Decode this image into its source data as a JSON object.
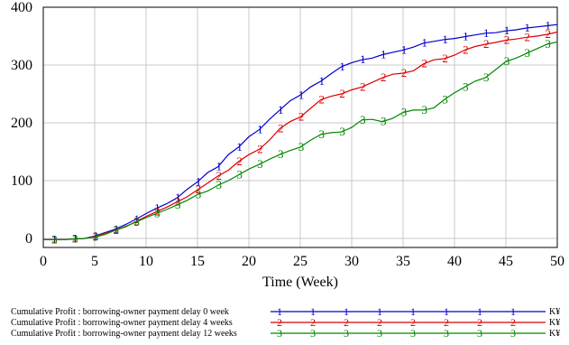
{
  "chart_data": {
    "type": "line",
    "xlabel": "Time (Week)",
    "ylabel": "",
    "xlim": [
      0,
      50
    ],
    "ylim": [
      0,
      400
    ],
    "x_ticks": [
      "0",
      "5",
      "10",
      "15",
      "20",
      "25",
      "30",
      "35",
      "40",
      "45",
      "50"
    ],
    "y_ticks": [
      "0",
      "100",
      "200",
      "300",
      "400"
    ],
    "grid": true,
    "legend_position": "bottom",
    "series": [
      {
        "name": "Cumulative Profit : borrowing-owner payment delay 0 week",
        "unit": "K¥",
        "marker": "1",
        "color": "#0000cc",
        "x": [
          0,
          1,
          2,
          3,
          4,
          5,
          6,
          7,
          8,
          9,
          10,
          11,
          12,
          13,
          14,
          15,
          16,
          17,
          18,
          19,
          20,
          21,
          22,
          23,
          24,
          25,
          26,
          27,
          28,
          29,
          30,
          31,
          32,
          33,
          34,
          35,
          36,
          37,
          38,
          39,
          40,
          41,
          42,
          43,
          44,
          45,
          46,
          47,
          48,
          49,
          50
        ],
        "y": [
          -2,
          -2,
          -2,
          -1,
          0,
          4,
          10,
          16,
          24,
          33,
          43,
          52,
          60,
          70,
          85,
          98,
          114,
          124,
          145,
          158,
          176,
          188,
          206,
          222,
          238,
          248,
          262,
          272,
          285,
          297,
          304,
          309,
          312,
          318,
          322,
          326,
          331,
          338,
          341,
          344,
          346,
          349,
          352,
          355,
          356,
          359,
          361,
          364,
          366,
          368,
          370
        ]
      },
      {
        "name": "Cumulative Profit : borrowing-owner payment delay 4 weeks",
        "unit": "K¥",
        "marker": "2",
        "color": "#dd0000",
        "x": [
          0,
          1,
          2,
          3,
          4,
          5,
          6,
          7,
          8,
          9,
          10,
          11,
          12,
          13,
          14,
          15,
          16,
          17,
          18,
          19,
          20,
          21,
          22,
          23,
          24,
          25,
          26,
          27,
          28,
          29,
          30,
          31,
          32,
          33,
          34,
          35,
          36,
          37,
          38,
          39,
          40,
          41,
          42,
          43,
          44,
          45,
          46,
          47,
          48,
          49,
          50
        ],
        "y": [
          -2,
          -2,
          -2,
          -1,
          0,
          3,
          9,
          14,
          20,
          29,
          38,
          46,
          54,
          63,
          72,
          84,
          96,
          108,
          118,
          133,
          145,
          154,
          170,
          190,
          202,
          210,
          225,
          240,
          246,
          250,
          257,
          262,
          270,
          278,
          284,
          286,
          290,
          302,
          309,
          311,
          317,
          326,
          332,
          336,
          339,
          343,
          345,
          348,
          350,
          353,
          357
        ]
      },
      {
        "name": "Cumulative Profit : borrowing-owner payment delay 12 weeks",
        "unit": "K¥",
        "marker": "3",
        "color": "#008800",
        "x": [
          0,
          1,
          2,
          3,
          4,
          5,
          6,
          7,
          8,
          9,
          10,
          11,
          12,
          13,
          14,
          15,
          16,
          17,
          18,
          19,
          20,
          21,
          22,
          23,
          24,
          25,
          26,
          27,
          28,
          29,
          30,
          31,
          32,
          33,
          34,
          35,
          36,
          37,
          38,
          39,
          40,
          41,
          42,
          43,
          44,
          45,
          46,
          47,
          48,
          49,
          50
        ],
        "y": [
          -2,
          -2,
          -2,
          -1,
          0,
          2,
          7,
          14,
          21,
          28,
          36,
          43,
          50,
          58,
          66,
          76,
          82,
          92,
          100,
          110,
          120,
          128,
          137,
          145,
          152,
          158,
          170,
          180,
          183,
          184,
          192,
          205,
          206,
          202,
          208,
          218,
          222,
          222,
          226,
          240,
          252,
          262,
          272,
          278,
          292,
          306,
          312,
          320,
          328,
          336,
          340
        ]
      }
    ],
    "marker_positions": [
      1,
      3,
      5,
      7,
      9,
      11,
      13,
      15,
      17,
      19,
      21,
      23,
      25,
      27,
      29,
      31,
      33,
      35,
      37,
      39,
      41,
      43,
      45,
      47,
      49
    ]
  }
}
